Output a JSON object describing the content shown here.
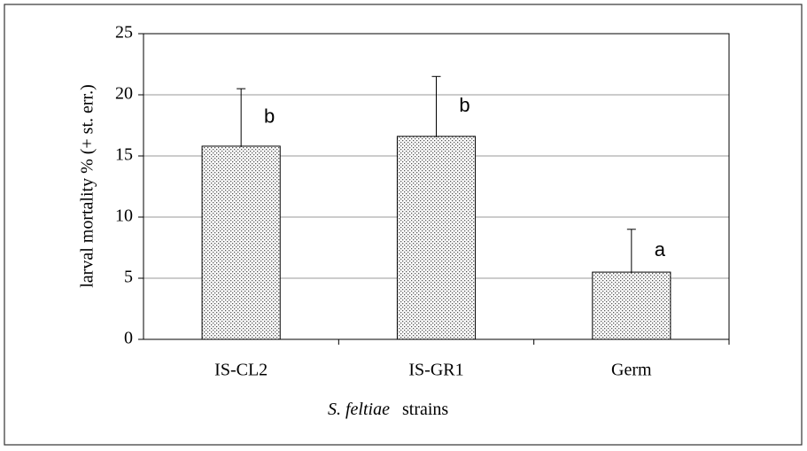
{
  "chart_data": {
    "type": "bar",
    "categories": [
      "IS-CL2",
      "IS-GR1",
      "Germ"
    ],
    "values": [
      15.8,
      16.6,
      5.5
    ],
    "errors": [
      4.7,
      4.9,
      3.5
    ],
    "annotations": [
      "b",
      "b",
      "a"
    ],
    "ylabel": "larval mortality % (+ st. err.)",
    "xlabel_parts": [
      "S. feltiae",
      "strains"
    ],
    "ylim": [
      0,
      25
    ],
    "yticks": [
      0,
      5,
      10,
      15,
      20,
      25
    ],
    "grid": true,
    "color": "#888888"
  }
}
